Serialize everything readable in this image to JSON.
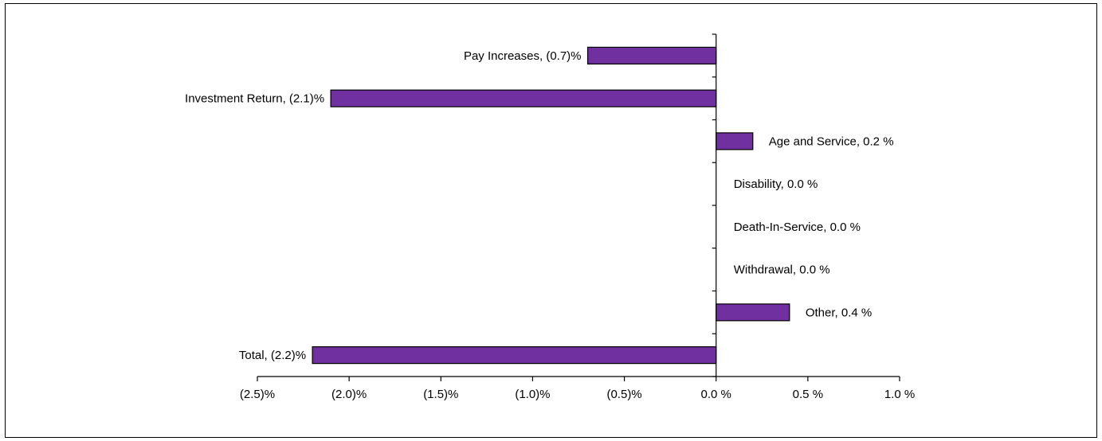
{
  "chart_data": {
    "type": "bar",
    "orientation": "horizontal",
    "categories": [
      "Pay Increases",
      "Investment Return",
      "Age and Service",
      "Disability",
      "Death-In-Service",
      "Withdrawal",
      "Other",
      "Total"
    ],
    "values": [
      -0.7,
      -2.1,
      0.2,
      0.0,
      0.0,
      0.0,
      0.4,
      -2.2
    ],
    "data_labels": [
      "Pay Increases, (0.7)%",
      "Investment Return, (2.1)%",
      "Age and Service, 0.2 %",
      "Disability, 0.0 %",
      "Death-In-Service, 0.0 %",
      "Withdrawal, 0.0 %",
      "Other, 0.4 %",
      "Total, (2.2)%"
    ],
    "xlim": [
      -2.5,
      1.0
    ],
    "x_ticks": [
      -2.5,
      -2.0,
      -1.5,
      -1.0,
      -0.5,
      0.0,
      0.5,
      1.0
    ],
    "x_tick_labels": [
      "(2.5)%",
      "(2.0)%",
      "(1.5)%",
      "(1.0)%",
      "(0.5)%",
      "0.0 %",
      "0.5 %",
      "1.0 %"
    ],
    "title": "",
    "xlabel": "",
    "ylabel": "",
    "grid": false,
    "legend": "none",
    "bar_color": "#7030A0",
    "bar_edge_color": "#000000"
  }
}
